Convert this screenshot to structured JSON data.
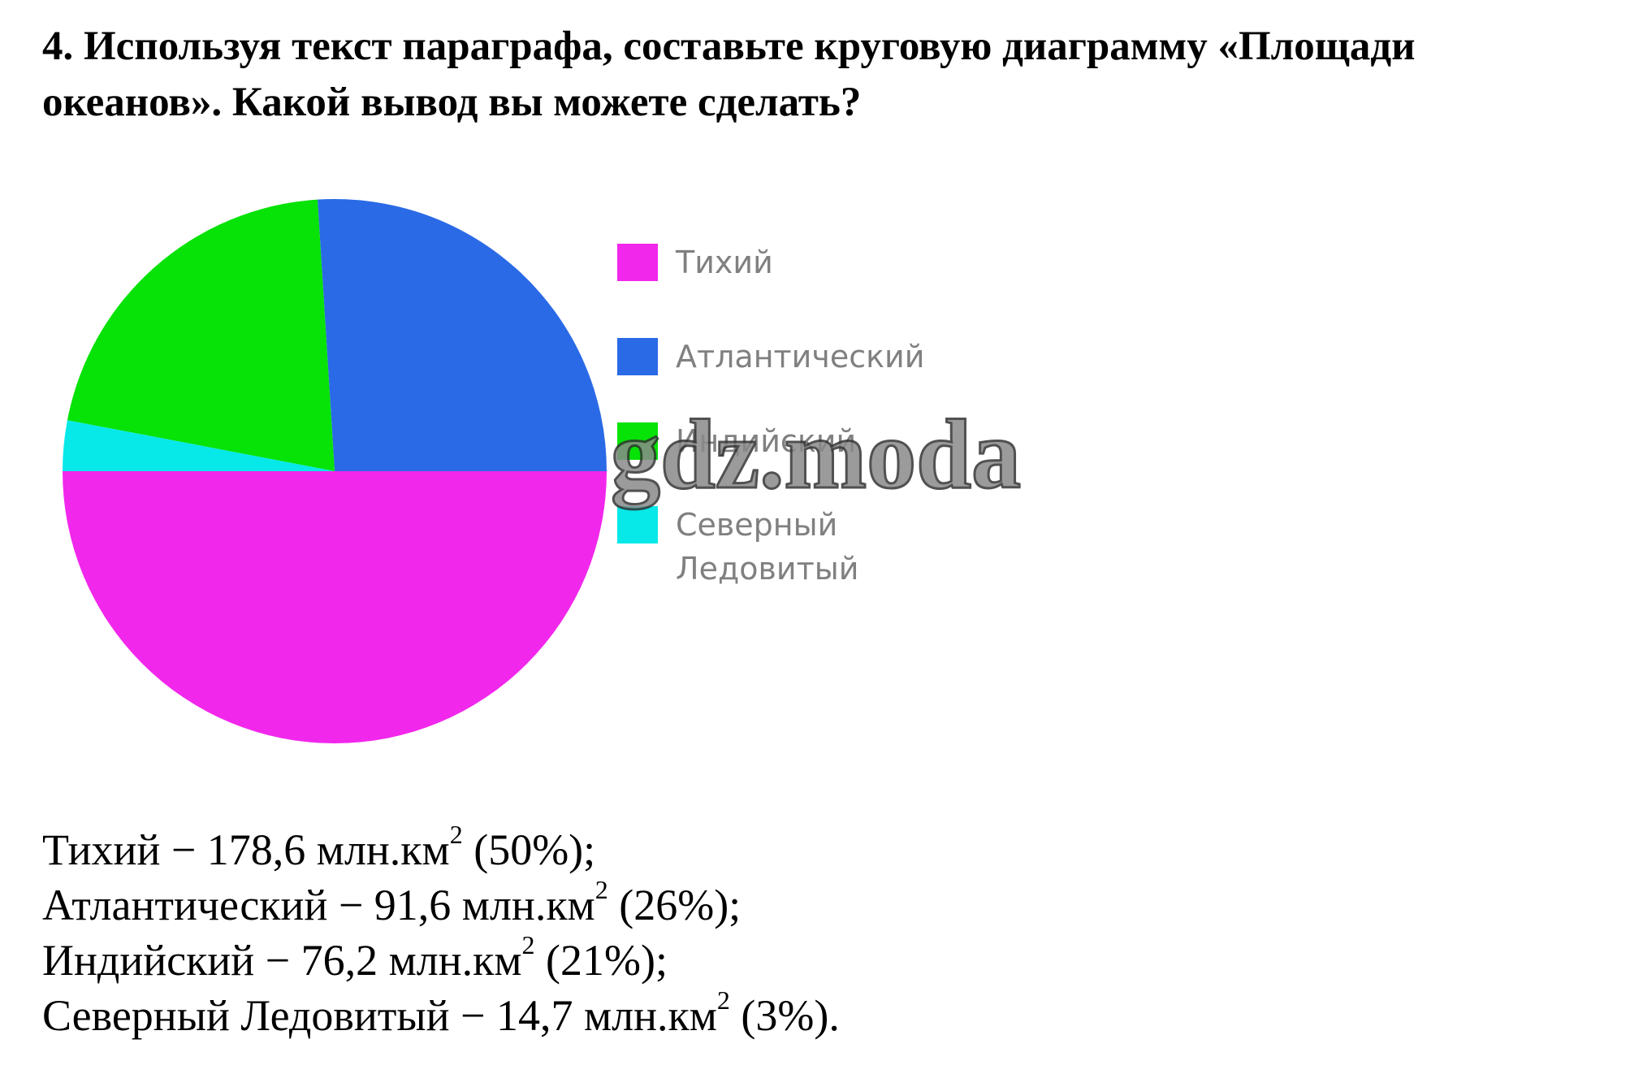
{
  "header": {
    "title_line_1": "4. Используя текст параграфа, составьте круговую диаграмму «Площади",
    "title_line_2": "океанов». Какой вывод вы можете сделать?"
  },
  "chart_data": {
    "type": "pie",
    "categories": [
      "Тихий",
      "Атлантический",
      "Индийский",
      "Северный Ледовитый"
    ],
    "values": [
      50,
      26,
      21,
      3
    ],
    "colors": [
      "#f227ec",
      "#2a6ae6",
      "#07e207",
      "#07e8e8"
    ],
    "start": "left",
    "direction": "counterclockwise"
  },
  "watermark": "gdz.moda",
  "answer": {
    "lines": [
      {
        "text": "Тихий − 178,6 млн.км",
        "sup": "2",
        "tail": " (50%);"
      },
      {
        "text": "Атлантический − 91,6 млн.км",
        "sup": "2",
        "tail": " (26%);"
      },
      {
        "text": "Индийский − 76,2 млн.км",
        "sup": "2",
        "tail": " (21%);"
      },
      {
        "text": "Северный Ледовитый − 14,7 млн.км",
        "sup": "2",
        "tail": " (3%)."
      }
    ]
  }
}
